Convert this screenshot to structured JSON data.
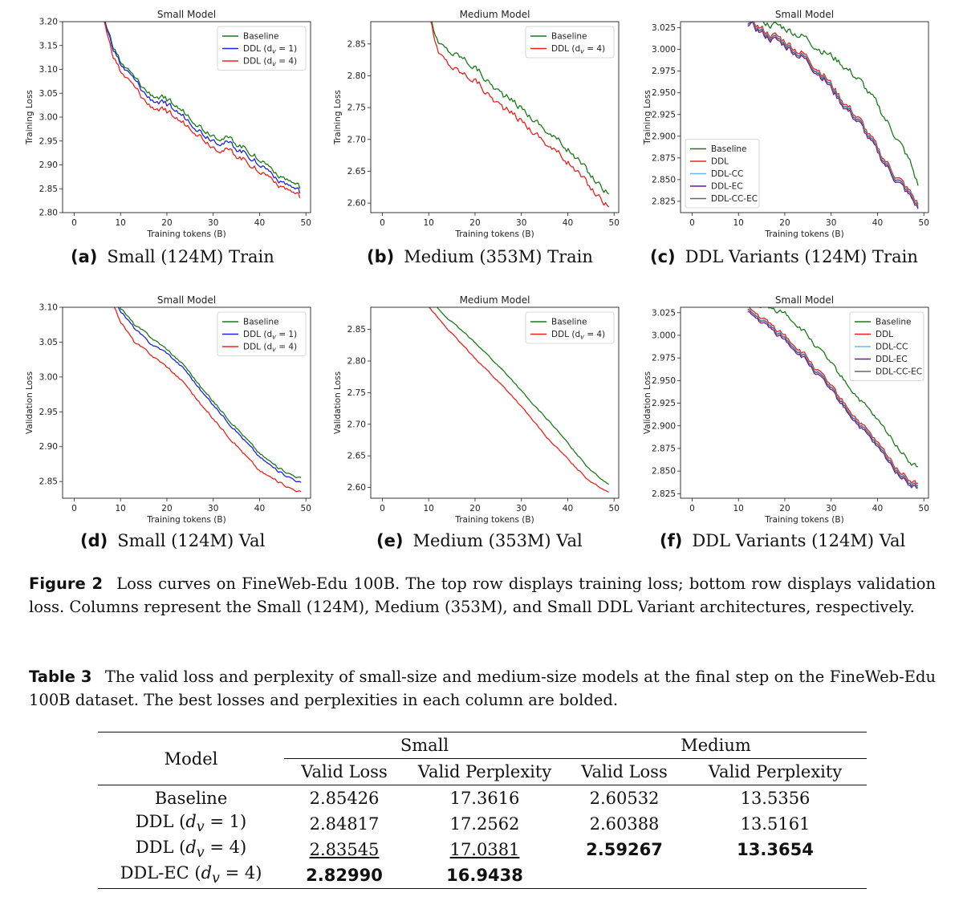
{
  "figure": {
    "label": "Figure 2",
    "text": "Loss curves on FineWeb-Edu 100B. The top row displays training loss; bottom row displays validation loss. Columns represent the Small (124M), Medium (353M), and Small DDL Variant architectures, respectively.",
    "subcaptions": [
      {
        "label": "(a)",
        "text": "Small (124M) Train"
      },
      {
        "label": "(b)",
        "text": "Medium (353M) Train"
      },
      {
        "label": "(c)",
        "text": "DDL Variants (124M) Train"
      },
      {
        "label": "(d)",
        "text": "Small (124M) Val"
      },
      {
        "label": "(e)",
        "text": "Medium (353M) Val"
      },
      {
        "label": "(f)",
        "text": "DDL Variants (124M) Val"
      }
    ]
  },
  "colors": {
    "baseline": "#1a7a1a",
    "ddl": "#e8231c",
    "ddl1": "#1c22e0",
    "ddlcc": "#6fb6e8",
    "ddlec": "#6a1a99",
    "ddlccec": "#666666"
  },
  "chart_data": [
    {
      "id": "a",
      "type": "line",
      "title": "Small Model",
      "xlabel": "Training tokens (B)",
      "ylabel": "Training Loss",
      "xlim": [
        -2.5,
        51
      ],
      "ylim": [
        2.8,
        3.2
      ],
      "xticks": [
        0,
        10,
        20,
        30,
        40,
        50
      ],
      "yticks": [
        2.8,
        2.85,
        2.9,
        2.95,
        3.0,
        3.05,
        3.1,
        3.15,
        3.2
      ],
      "ytick_decimals": 2,
      "legend": "top-right",
      "noise": 0.012,
      "series": [
        {
          "name": "Baseline",
          "color_key": "baseline",
          "legend_label": "Baseline",
          "x": [
            6,
            8,
            10,
            13,
            16,
            20,
            23,
            26,
            28,
            30,
            33,
            36,
            40,
            43,
            46,
            49
          ],
          "y": [
            3.22,
            3.16,
            3.115,
            3.08,
            3.05,
            3.035,
            3.015,
            2.995,
            2.975,
            2.965,
            2.955,
            2.94,
            2.915,
            2.89,
            2.87,
            2.85
          ]
        },
        {
          "name": "DDL (d_v = 1)",
          "color_key": "ddl1",
          "legend_label": "DDL (d",
          "x": [
            6,
            8,
            10,
            13,
            16,
            20,
            23,
            26,
            28,
            30,
            33,
            36,
            40,
            43,
            46,
            49
          ],
          "y": [
            3.22,
            3.155,
            3.11,
            3.075,
            3.04,
            3.025,
            3.005,
            2.985,
            2.965,
            2.955,
            2.945,
            2.93,
            2.905,
            2.88,
            2.86,
            2.84
          ]
        },
        {
          "name": "DDL (d_v = 4)",
          "color_key": "ddl",
          "legend_label": "DDL (d",
          "x": [
            6,
            8,
            10,
            13,
            16,
            20,
            23,
            26,
            28,
            30,
            33,
            36,
            40,
            43,
            46,
            49
          ],
          "y": [
            3.22,
            3.14,
            3.095,
            3.06,
            3.025,
            3.01,
            2.99,
            2.975,
            2.955,
            2.94,
            2.93,
            2.915,
            2.89,
            2.87,
            2.85,
            2.83
          ]
        }
      ]
    },
    {
      "id": "b",
      "type": "line",
      "title": "Medium Model",
      "xlabel": "Training tokens (B)",
      "ylabel": "Training Loss",
      "xlim": [
        -2.5,
        51
      ],
      "ylim": [
        2.585,
        2.885
      ],
      "xticks": [
        0,
        10,
        20,
        30,
        40,
        50
      ],
      "yticks": [
        2.6,
        2.65,
        2.7,
        2.75,
        2.8,
        2.85
      ],
      "ytick_decimals": 2,
      "legend": "top-right",
      "noise": 0.01,
      "series": [
        {
          "name": "Baseline",
          "color_key": "baseline",
          "legend_label": "Baseline",
          "x": [
            10,
            12,
            14,
            17,
            20,
            23,
            26,
            30,
            33,
            36,
            40,
            43,
            46,
            49
          ],
          "y": [
            2.9,
            2.85,
            2.84,
            2.83,
            2.815,
            2.79,
            2.77,
            2.75,
            2.73,
            2.71,
            2.685,
            2.66,
            2.635,
            2.615
          ]
        },
        {
          "name": "DDL (d_v = 4)",
          "color_key": "ddl",
          "legend_label": "DDL (d",
          "x": [
            10,
            12,
            14,
            17,
            20,
            23,
            26,
            30,
            33,
            36,
            40,
            43,
            46,
            49
          ],
          "y": [
            2.9,
            2.835,
            2.82,
            2.805,
            2.795,
            2.77,
            2.75,
            2.73,
            2.71,
            2.69,
            2.665,
            2.64,
            2.615,
            2.595
          ]
        }
      ]
    },
    {
      "id": "c",
      "type": "line",
      "title": "Small Model",
      "xlabel": "Training tokens (B)",
      "ylabel": "Training Loss",
      "xlim": [
        -2.5,
        51
      ],
      "ylim": [
        2.812,
        3.032
      ],
      "xticks": [
        0,
        10,
        20,
        30,
        40,
        50
      ],
      "yticks": [
        2.825,
        2.85,
        2.875,
        2.9,
        2.925,
        2.95,
        2.975,
        3.0,
        3.025
      ],
      "ytick_decimals": 3,
      "legend": "bottom-left",
      "noise": 0.008,
      "series": [
        {
          "name": "Baseline",
          "color_key": "baseline",
          "legend_label": "Baseline",
          "x": [
            12,
            16,
            20,
            24,
            28,
            32,
            36,
            40,
            44,
            47,
            49
          ],
          "y": [
            3.04,
            3.03,
            3.025,
            3.015,
            3.0,
            2.985,
            2.965,
            2.935,
            2.9,
            2.87,
            2.84
          ]
        },
        {
          "name": "DDL",
          "color_key": "ddl",
          "legend_label": "DDL",
          "x": [
            12,
            16,
            20,
            24,
            28,
            32,
            36,
            40,
            44,
            47,
            49
          ],
          "y": [
            3.035,
            3.02,
            3.01,
            2.995,
            2.975,
            2.945,
            2.92,
            2.885,
            2.855,
            2.835,
            2.82
          ]
        },
        {
          "name": "DDL-CC",
          "color_key": "ddlcc",
          "legend_label": "DDL-CC",
          "x": [
            12,
            16,
            20,
            24,
            28,
            32,
            36,
            40,
            44,
            47,
            49
          ],
          "y": [
            3.033,
            3.018,
            3.008,
            2.993,
            2.973,
            2.943,
            2.918,
            2.883,
            2.853,
            2.833,
            2.818
          ]
        },
        {
          "name": "DDL-EC",
          "color_key": "ddlec",
          "legend_label": "DDL-EC",
          "x": [
            12,
            16,
            20,
            24,
            28,
            32,
            36,
            40,
            44,
            47,
            49
          ],
          "y": [
            3.03,
            3.015,
            3.005,
            2.99,
            2.97,
            2.94,
            2.915,
            2.88,
            2.85,
            2.83,
            2.815
          ]
        },
        {
          "name": "DDL-CC-EC",
          "color_key": "ddlccec",
          "legend_label": "DDL-CC-EC",
          "x": [
            12,
            16,
            20,
            24,
            28,
            32,
            36,
            40,
            44,
            47,
            49
          ],
          "y": [
            3.032,
            3.017,
            3.007,
            2.992,
            2.972,
            2.942,
            2.917,
            2.882,
            2.852,
            2.832,
            2.817
          ]
        }
      ]
    },
    {
      "id": "d",
      "type": "line",
      "title": "Small Model",
      "xlabel": "Training tokens (B)",
      "ylabel": "Validation Loss",
      "xlim": [
        -2.5,
        51
      ],
      "ylim": [
        2.826,
        3.1
      ],
      "xticks": [
        0,
        10,
        20,
        30,
        40,
        50
      ],
      "yticks": [
        2.85,
        2.9,
        2.95,
        3.0,
        3.05,
        3.1
      ],
      "ytick_decimals": 2,
      "legend": "top-right",
      "noise": 0.003,
      "series": [
        {
          "name": "Baseline",
          "color_key": "baseline",
          "legend_label": "Baseline",
          "x": [
            8,
            10,
            13,
            16,
            20,
            24,
            28,
            32,
            36,
            40,
            44,
            47,
            49
          ],
          "y": [
            3.12,
            3.1,
            3.075,
            3.06,
            3.04,
            3.015,
            2.98,
            2.95,
            2.92,
            2.89,
            2.87,
            2.86,
            2.855
          ]
        },
        {
          "name": "DDL (d_v = 1)",
          "color_key": "ddl1",
          "legend_label": "DDL (d",
          "x": [
            8,
            10,
            13,
            16,
            20,
            24,
            28,
            32,
            36,
            40,
            44,
            47,
            49
          ],
          "y": [
            3.12,
            3.095,
            3.07,
            3.05,
            3.035,
            3.01,
            2.975,
            2.945,
            2.915,
            2.885,
            2.865,
            2.855,
            2.848
          ]
        },
        {
          "name": "DDL (d_v = 4)",
          "color_key": "ddl",
          "legend_label": "DDL (d",
          "x": [
            8,
            10,
            13,
            16,
            20,
            24,
            28,
            32,
            36,
            40,
            44,
            47,
            49
          ],
          "y": [
            3.11,
            3.08,
            3.05,
            3.035,
            3.015,
            2.99,
            2.955,
            2.925,
            2.895,
            2.865,
            2.85,
            2.84,
            2.835
          ]
        }
      ]
    },
    {
      "id": "e",
      "type": "line",
      "title": "Medium Model",
      "xlabel": "Training tokens (B)",
      "ylabel": "Validation Loss",
      "xlim": [
        -2.5,
        51
      ],
      "ylim": [
        2.583,
        2.885
      ],
      "xticks": [
        0,
        10,
        20,
        30,
        40,
        50
      ],
      "yticks": [
        2.6,
        2.65,
        2.7,
        2.75,
        2.8,
        2.85
      ],
      "ytick_decimals": 2,
      "legend": "top-right",
      "noise": 0.002,
      "series": [
        {
          "name": "Baseline",
          "color_key": "baseline",
          "legend_label": "Baseline",
          "x": [
            10,
            13,
            16,
            20,
            24,
            28,
            32,
            36,
            40,
            44,
            47,
            49
          ],
          "y": [
            2.9,
            2.875,
            2.855,
            2.83,
            2.8,
            2.77,
            2.735,
            2.705,
            2.67,
            2.635,
            2.615,
            2.605
          ]
        },
        {
          "name": "DDL (d_v = 4)",
          "color_key": "ddl",
          "legend_label": "DDL (d",
          "x": [
            10,
            13,
            16,
            20,
            24,
            28,
            32,
            36,
            40,
            44,
            47,
            49
          ],
          "y": [
            2.885,
            2.86,
            2.835,
            2.805,
            2.775,
            2.745,
            2.71,
            2.675,
            2.645,
            2.615,
            2.6,
            2.593
          ]
        }
      ]
    },
    {
      "id": "f",
      "type": "line",
      "title": "Small Model",
      "xlabel": "Training tokens (B)",
      "ylabel": "Validation Loss",
      "xlim": [
        -2.5,
        51
      ],
      "ylim": [
        2.82,
        3.031
      ],
      "xticks": [
        0,
        10,
        20,
        30,
        40,
        50
      ],
      "yticks": [
        2.825,
        2.85,
        2.875,
        2.9,
        2.925,
        2.95,
        2.975,
        3.0,
        3.025
      ],
      "ytick_decimals": 3,
      "legend": "top-right",
      "noise": 0.005,
      "series": [
        {
          "name": "Baseline",
          "color_key": "baseline",
          "legend_label": "Baseline",
          "x": [
            12,
            16,
            20,
            24,
            28,
            32,
            36,
            40,
            44,
            47,
            49
          ],
          "y": [
            3.035,
            3.03,
            3.025,
            3.005,
            2.98,
            2.955,
            2.93,
            2.905,
            2.88,
            2.86,
            2.853
          ]
        },
        {
          "name": "DDL",
          "color_key": "ddl",
          "legend_label": "DDL",
          "x": [
            12,
            16,
            20,
            24,
            28,
            32,
            36,
            40,
            44,
            47,
            49
          ],
          "y": [
            3.03,
            3.015,
            3.0,
            2.98,
            2.955,
            2.93,
            2.905,
            2.88,
            2.855,
            2.84,
            2.835
          ]
        },
        {
          "name": "DDL-CC",
          "color_key": "ddlcc",
          "legend_label": "DDL-CC",
          "x": [
            12,
            16,
            20,
            24,
            28,
            32,
            36,
            40,
            44,
            47,
            49
          ],
          "y": [
            3.028,
            3.013,
            2.998,
            2.978,
            2.953,
            2.928,
            2.903,
            2.878,
            2.853,
            2.838,
            2.833
          ]
        },
        {
          "name": "DDL-EC",
          "color_key": "ddlec",
          "legend_label": "DDL-EC",
          "x": [
            12,
            16,
            20,
            24,
            28,
            32,
            36,
            40,
            44,
            47,
            49
          ],
          "y": [
            3.025,
            3.01,
            2.995,
            2.975,
            2.95,
            2.925,
            2.9,
            2.875,
            2.85,
            2.835,
            2.83
          ]
        },
        {
          "name": "DDL-CC-EC",
          "color_key": "ddlccec",
          "legend_label": "DDL-CC-EC",
          "x": [
            12,
            16,
            20,
            24,
            28,
            32,
            36,
            40,
            44,
            47,
            49
          ],
          "y": [
            3.027,
            3.012,
            2.997,
            2.977,
            2.952,
            2.927,
            2.902,
            2.877,
            2.852,
            2.837,
            2.832
          ]
        }
      ]
    }
  ],
  "legend_subscript": {
    "var": "v",
    "value_1": "1",
    "value_4": "4"
  },
  "table": {
    "label": "Table 3",
    "text": "The valid loss and perplexity of small-size and medium-size models at the final step on the FineWeb-Edu 100B dataset. The best losses and perplexities in each column are bolded.",
    "header": {
      "model": "Model",
      "small": "Small",
      "medium": "Medium",
      "valid_loss": "Valid Loss",
      "valid_perplexity": "Valid Perplexity"
    },
    "rows": [
      {
        "model": "Baseline",
        "small_loss": "2.85426",
        "small_ppl": "17.3616",
        "medium_loss": "2.60532",
        "medium_ppl": "13.5356"
      },
      {
        "model_prefix": "DDL (",
        "model_var": "d",
        "model_sub": "v",
        "model_eq": " = 1)",
        "small_loss": "2.84817",
        "small_ppl": "17.2562",
        "medium_loss": "2.60388",
        "medium_ppl": "13.5161"
      },
      {
        "model_prefix": "DDL (",
        "model_var": "d",
        "model_sub": "v",
        "model_eq": " = 4)",
        "small_loss": "2.83545",
        "small_ppl": "17.0381",
        "medium_loss": "2.59267",
        "medium_ppl": "13.3654"
      },
      {
        "model_prefix": "DDL-EC (",
        "model_var": "d",
        "model_sub": "v",
        "model_eq": " = 4)",
        "small_loss": "2.82990",
        "small_ppl": "16.9438",
        "medium_loss": "",
        "medium_ppl": ""
      }
    ]
  }
}
